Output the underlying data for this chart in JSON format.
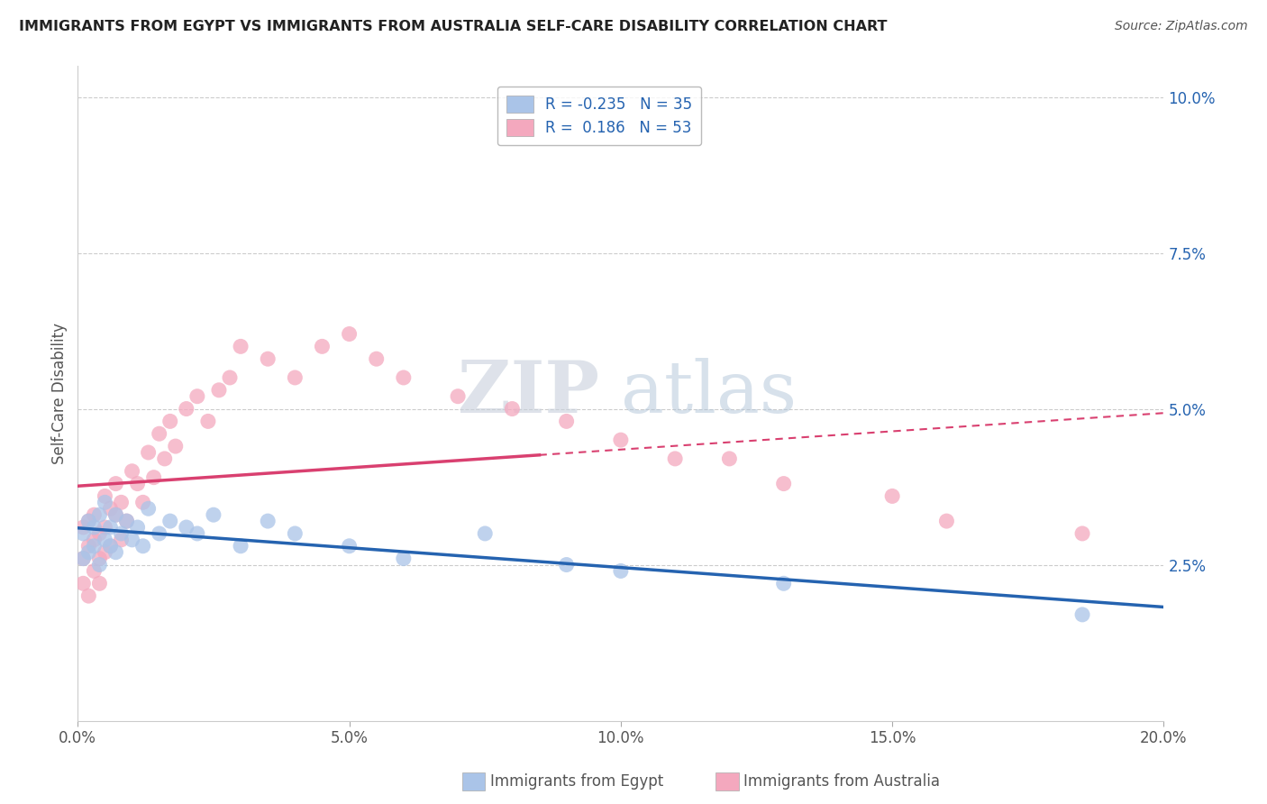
{
  "title": "IMMIGRANTS FROM EGYPT VS IMMIGRANTS FROM AUSTRALIA SELF-CARE DISABILITY CORRELATION CHART",
  "source": "Source: ZipAtlas.com",
  "ylabel": "Self-Care Disability",
  "xlim": [
    0.0,
    0.2
  ],
  "ylim": [
    0.0,
    0.105
  ],
  "xticks": [
    0.0,
    0.05,
    0.1,
    0.15,
    0.2
  ],
  "xticklabels": [
    "0.0%",
    "5.0%",
    "10.0%",
    "15.0%",
    "20.0%"
  ],
  "yticks": [
    0.025,
    0.05,
    0.075,
    0.1
  ],
  "yticklabels": [
    "2.5%",
    "5.0%",
    "7.5%",
    "10.0%"
  ],
  "egypt_R": -0.235,
  "egypt_N": 35,
  "australia_R": 0.186,
  "australia_N": 53,
  "egypt_color": "#aac4e8",
  "australia_color": "#f4a8be",
  "egypt_line_color": "#2563b0",
  "australia_line_color": "#d94070",
  "legend_egypt_label": "Immigrants from Egypt",
  "legend_australia_label": "Immigrants from Australia",
  "egypt_points_x": [
    0.001,
    0.001,
    0.002,
    0.002,
    0.003,
    0.003,
    0.004,
    0.004,
    0.005,
    0.005,
    0.006,
    0.006,
    0.007,
    0.007,
    0.008,
    0.009,
    0.01,
    0.011,
    0.012,
    0.013,
    0.015,
    0.017,
    0.02,
    0.022,
    0.025,
    0.03,
    0.035,
    0.04,
    0.05,
    0.06,
    0.075,
    0.09,
    0.1,
    0.13,
    0.185
  ],
  "egypt_points_y": [
    0.03,
    0.026,
    0.032,
    0.027,
    0.031,
    0.028,
    0.033,
    0.025,
    0.029,
    0.035,
    0.028,
    0.031,
    0.027,
    0.033,
    0.03,
    0.032,
    0.029,
    0.031,
    0.028,
    0.034,
    0.03,
    0.032,
    0.031,
    0.03,
    0.033,
    0.028,
    0.032,
    0.03,
    0.028,
    0.026,
    0.03,
    0.025,
    0.024,
    0.022,
    0.017
  ],
  "australia_points_x": [
    0.001,
    0.001,
    0.001,
    0.002,
    0.002,
    0.002,
    0.003,
    0.003,
    0.003,
    0.004,
    0.004,
    0.004,
    0.005,
    0.005,
    0.005,
    0.006,
    0.006,
    0.007,
    0.007,
    0.008,
    0.008,
    0.009,
    0.01,
    0.011,
    0.012,
    0.013,
    0.014,
    0.015,
    0.016,
    0.017,
    0.018,
    0.02,
    0.022,
    0.024,
    0.026,
    0.028,
    0.03,
    0.035,
    0.04,
    0.045,
    0.05,
    0.055,
    0.06,
    0.07,
    0.08,
    0.09,
    0.1,
    0.11,
    0.12,
    0.13,
    0.15,
    0.16,
    0.185
  ],
  "australia_points_y": [
    0.031,
    0.026,
    0.022,
    0.032,
    0.028,
    0.02,
    0.033,
    0.029,
    0.024,
    0.03,
    0.026,
    0.022,
    0.036,
    0.031,
    0.027,
    0.034,
    0.028,
    0.038,
    0.033,
    0.035,
    0.029,
    0.032,
    0.04,
    0.038,
    0.035,
    0.043,
    0.039,
    0.046,
    0.042,
    0.048,
    0.044,
    0.05,
    0.052,
    0.048,
    0.053,
    0.055,
    0.06,
    0.058,
    0.055,
    0.06,
    0.062,
    0.058,
    0.055,
    0.052,
    0.05,
    0.048,
    0.045,
    0.042,
    0.042,
    0.038,
    0.036,
    0.032,
    0.03
  ],
  "watermark_zip": "ZIP",
  "watermark_atlas": "atlas",
  "background_color": "#ffffff",
  "grid_color": "#cccccc"
}
